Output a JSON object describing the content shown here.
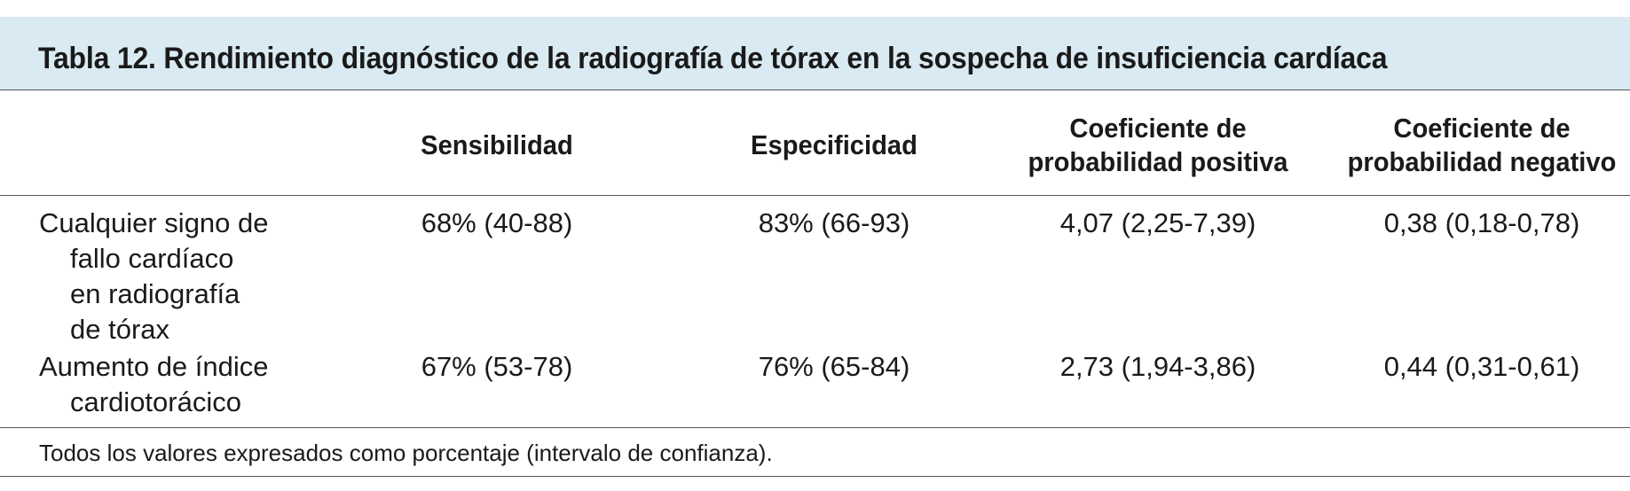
{
  "table": {
    "title": "Tabla 12. Rendimiento diagnóstico de la radiografía de tórax en la sospecha de insuficiencia cardíaca",
    "headers": {
      "col1": "Sensibilidad",
      "col2": "Especificidad",
      "col3_line1": "Coeficiente de",
      "col3_line2": "probabilidad positiva",
      "col4_line1": "Coeficiente de",
      "col4_line2": "probabilidad negativo"
    },
    "rows": [
      {
        "label_lines": [
          "Cualquier signo de",
          "fallo cardíaco",
          "en radiografía",
          "de tórax"
        ],
        "sensibilidad": "68% (40-88)",
        "especificidad": "83% (66-93)",
        "cp_positiva": "4,07 (2,25-7,39)",
        "cp_negativo": "0,38 (0,18-0,78)"
      },
      {
        "label_lines": [
          "Aumento de índice",
          "cardiotorácico"
        ],
        "sensibilidad": "67% (53-78)",
        "especificidad": "76% (65-84)",
        "cp_positiva": "2,73 (1,94-3,86)",
        "cp_negativo": "0,44 (0,31-0,61)"
      }
    ],
    "footnote": "Todos los valores expresados como porcentaje (intervalo de confianza).",
    "colors": {
      "title_background": "#daeaf2",
      "text": "#1a1a1a",
      "rule": "#555555"
    }
  }
}
